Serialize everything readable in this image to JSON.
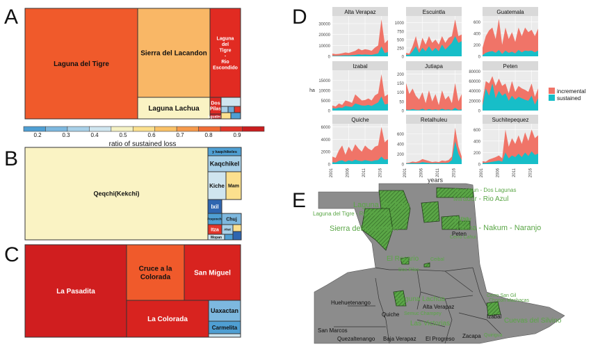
{
  "panels": {
    "a": "A",
    "b": "B",
    "c": "C",
    "d": "D",
    "e": "E"
  },
  "colors": {
    "incremental": "#f07468",
    "sustained": "#17bec8",
    "panel_bg": "#ebebeb",
    "strip_bg": "#d9d9d9",
    "map_land": "#8c8c8c",
    "map_sea": "#ffffff",
    "protected": "#5aa646"
  },
  "treemap_a": {
    "legend": {
      "title": "ratio of sustained loss",
      "ticks": [
        "0.2",
        "0.3",
        "0.4",
        "0.5",
        "0.6",
        "0.7",
        "0.8",
        "0.9"
      ],
      "bins": [
        "#4f9fd3",
        "#7db8df",
        "#a8d0e8",
        "#cfe5ef",
        "#f4f1c4",
        "#fbe08e",
        "#f9c167",
        "#f59a4c",
        "#f06d36",
        "#e2362a",
        "#c91d1e"
      ]
    },
    "cells": [
      {
        "label": "Laguna del Tigre",
        "color": "#f05a2b"
      },
      {
        "label": "Sierra del Lacandon",
        "color": "#f9b766"
      },
      {
        "label": "Laguna del Tigre - Rio Escondido",
        "color": "#e12b22"
      },
      {
        "label": "Laguna Lachua",
        "color": "#faf3c4"
      },
      {
        "label": "Dos Pilas",
        "color": "#dd2a24"
      },
      {
        "label": "Aguateca",
        "color": "#c52227"
      },
      {
        "label": "",
        "color": "#cfe5ef"
      },
      {
        "label": "",
        "color": "#a8d0e8"
      },
      {
        "label": "",
        "color": "#6fa9d4"
      },
      {
        "label": "",
        "color": "#e2362a"
      },
      {
        "label": "",
        "color": "#fbe08e"
      },
      {
        "label": "",
        "color": "#4f9fd3"
      }
    ]
  },
  "treemap_b": {
    "cells": [
      {
        "label": "Qeqchi(Kekchi)",
        "color": "#faf3c4"
      },
      {
        "label": "y kaqchikeles",
        "color": "#4f9fd3"
      },
      {
        "label": "Kaqchikel",
        "color": "#a8d0e8"
      },
      {
        "label": "Kiche",
        "color": "#cfe5ef"
      },
      {
        "label": "Mam",
        "color": "#fbe08e"
      },
      {
        "label": "Ixil",
        "color": "#2f66b0"
      },
      {
        "label": "Poqomchi",
        "color": "#4f9fd3"
      },
      {
        "label": "Chuj",
        "color": "#7db8df"
      },
      {
        "label": "Itza",
        "color": "#e2362a"
      },
      {
        "label": "Akat",
        "color": "#a8d0e8"
      },
      {
        "label": "Mopan",
        "color": "#cfe5ef"
      },
      {
        "label": "",
        "color": "#4f9fd3"
      },
      {
        "label": "",
        "color": "#fbe08e"
      },
      {
        "label": "",
        "color": "#2f66b0"
      }
    ]
  },
  "treemap_c": {
    "cells": [
      {
        "label": "La Pasadita",
        "color": "#d01e1f"
      },
      {
        "label": "Cruce a la Colorada",
        "color": "#f05a2b"
      },
      {
        "label": "San Miguel",
        "color": "#d8231f"
      },
      {
        "label": "La Colorada",
        "color": "#d8231f"
      },
      {
        "label": "Uaxactan",
        "color": "#7db8df"
      },
      {
        "label": "Carmelita",
        "color": "#4f9fd3"
      },
      {
        "label": "",
        "color": "#cfe5ef"
      }
    ]
  },
  "chart_data": {
    "type": "area",
    "xlabel": "years",
    "ylabel": "ha",
    "x_ticks": [
      "2001",
      "2006",
      "2011",
      "2016"
    ],
    "x": [
      2001,
      2002,
      2003,
      2004,
      2005,
      2006,
      2007,
      2008,
      2009,
      2010,
      2011,
      2012,
      2013,
      2014,
      2015,
      2016,
      2017,
      2018
    ],
    "legend": [
      "incremental",
      "sustained"
    ],
    "legend_position": "right",
    "grid": true,
    "facets": [
      {
        "name": "Alta Verapaz",
        "ylim": [
          0,
          37000
        ],
        "yticks": [
          "0",
          "10000",
          "20000",
          "30000"
        ],
        "total": [
          2500,
          2000,
          2200,
          2800,
          3500,
          3000,
          4000,
          5000,
          7000,
          5500,
          6500,
          6000,
          5000,
          8000,
          10000,
          34000,
          12000,
          15000
        ],
        "sustained": [
          500,
          400,
          500,
          700,
          900,
          800,
          1000,
          1300,
          1800,
          1400,
          1700,
          1500,
          1300,
          2000,
          2600,
          9000,
          3000,
          3800
        ]
      },
      {
        "name": "Escuintla",
        "ylim": [
          0,
          1200
        ],
        "yticks": [
          "0",
          "250",
          "500",
          "750",
          "1000"
        ],
        "total": [
          100,
          80,
          300,
          600,
          200,
          550,
          350,
          600,
          400,
          500,
          350,
          600,
          400,
          550,
          600,
          1100,
          600,
          650
        ],
        "sustained": [
          50,
          40,
          150,
          300,
          100,
          250,
          150,
          300,
          150,
          250,
          150,
          350,
          200,
          300,
          400,
          600,
          400,
          450
        ]
      },
      {
        "name": "Guatemala",
        "ylim": [
          0,
          700
        ],
        "yticks": [
          "0",
          "200",
          "400",
          "600"
        ],
        "total": [
          150,
          350,
          450,
          500,
          300,
          650,
          200,
          500,
          300,
          420,
          250,
          500,
          350,
          500,
          420,
          460,
          350,
          480
        ],
        "sustained": [
          20,
          60,
          80,
          90,
          60,
          110,
          40,
          100,
          60,
          80,
          50,
          110,
          70,
          100,
          90,
          100,
          70,
          100
        ]
      },
      {
        "name": "Izabal",
        "ylim": [
          0,
          20000
        ],
        "yticks": [
          "0",
          "5000",
          "10000",
          "15000"
        ],
        "total": [
          2500,
          2000,
          3500,
          2800,
          5000,
          4500,
          3800,
          8000,
          6500,
          5000,
          5200,
          6000,
          5000,
          7500,
          8500,
          18000,
          7000,
          8000
        ],
        "sustained": [
          1200,
          1000,
          1500,
          1300,
          2300,
          2000,
          1800,
          3500,
          3000,
          2500,
          2400,
          2800,
          2300,
          3200,
          4000,
          7000,
          3000,
          3300
        ]
      },
      {
        "name": "Jutiapa",
        "ylim": [
          0,
          220
        ],
        "yticks": [
          "0",
          "50",
          "100",
          "150",
          "200"
        ],
        "total": [
          150,
          90,
          120,
          80,
          60,
          100,
          40,
          110,
          50,
          90,
          30,
          110,
          60,
          80,
          40,
          150,
          50,
          90
        ],
        "sustained": [
          5,
          3,
          8,
          4,
          3,
          10,
          2,
          8,
          3,
          6,
          2,
          10,
          4,
          6,
          2,
          15,
          3,
          6
        ]
      },
      {
        "name": "Peten",
        "ylim": [
          0,
          82000
        ],
        "yticks": [
          "0",
          "20000",
          "40000",
          "60000",
          "80000"
        ],
        "total": [
          20000,
          60000,
          55000,
          70000,
          50000,
          65000,
          50000,
          55000,
          35000,
          60000,
          38000,
          50000,
          45000,
          42000,
          38000,
          55000,
          28000,
          45000
        ],
        "sustained": [
          10000,
          45000,
          30000,
          55000,
          25000,
          40000,
          30000,
          35000,
          20000,
          30000,
          22000,
          28000,
          25000,
          22000,
          20000,
          30000,
          12000,
          25000
        ]
      },
      {
        "name": "Quiche",
        "ylim": [
          0,
          6500
        ],
        "yticks": [
          "0",
          "2000",
          "4000",
          "6000"
        ],
        "total": [
          1200,
          1000,
          2200,
          3000,
          1500,
          2800,
          2000,
          3200,
          2500,
          2000,
          3000,
          2500,
          2200,
          2800,
          3000,
          6000,
          3500,
          4000
        ],
        "sustained": [
          300,
          250,
          500,
          600,
          350,
          600,
          450,
          700,
          550,
          450,
          650,
          550,
          450,
          600,
          650,
          1200,
          700,
          800
        ]
      },
      {
        "name": "Retalhuleu",
        "ylim": [
          0,
          800
        ],
        "yticks": [
          "0",
          "200",
          "400",
          "600"
        ],
        "total": [
          20,
          30,
          50,
          40,
          60,
          100,
          80,
          60,
          40,
          50,
          40,
          70,
          60,
          80,
          150,
          720,
          350,
          150
        ],
        "sustained": [
          10,
          15,
          20,
          15,
          20,
          40,
          30,
          20,
          15,
          20,
          15,
          25,
          20,
          30,
          80,
          450,
          200,
          80
        ]
      },
      {
        "name": "Suchitepequez",
        "ylim": [
          0,
          700
        ],
        "yticks": [
          "0",
          "200",
          "400",
          "600"
        ],
        "total": [
          50,
          40,
          80,
          100,
          120,
          150,
          100,
          600,
          300,
          450,
          350,
          500,
          350,
          550,
          400,
          600,
          450,
          500
        ],
        "sustained": [
          20,
          20,
          30,
          40,
          50,
          60,
          40,
          200,
          100,
          150,
          120,
          180,
          120,
          200,
          140,
          220,
          160,
          180
        ]
      }
    ]
  },
  "map_e": {
    "protected_labels": [
      "Naachtun - Dos Lagunas",
      "Mirador - Rio Azul",
      "Laguna del Tigre",
      "Laguna del Tigre - Rio Escondido",
      "Sierra del Lacandon",
      "Tikal",
      "El Pilar",
      "Yaxha - Nakum - Naranjo",
      "Cerro Cahui",
      "El Rosario",
      "Ceibal",
      "Dos Pilas",
      "Laguna Lachua",
      "Semuc Champey",
      "Las Victorias",
      "Cerro San Gil",
      "Chocon Machacas",
      "Cuevas del Silvino",
      "Quirigua"
    ],
    "department_labels": [
      "Peten",
      "Huehuetenango",
      "Quiche",
      "Alta Verapaz",
      "Izabal",
      "San Marcos",
      "Quezaltenango",
      "Baja Verapaz",
      "El Progreso",
      "Zacapa"
    ]
  }
}
